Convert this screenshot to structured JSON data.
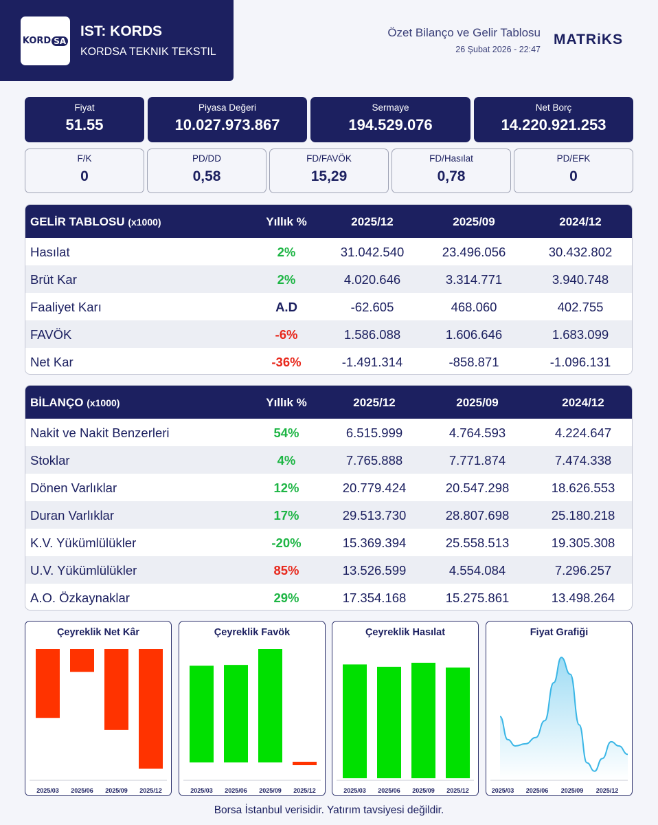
{
  "header": {
    "logo_text_a": "KORD",
    "logo_text_b": "SA",
    "ticker": "IST: KORDS",
    "company": "KORDSA TEKNIK TEKSTIL",
    "report_title": "Özet Bilanço ve Gelir Tablosu",
    "report_date": "26 Şubat 2026 - 22:47",
    "brand": "MATRiKS"
  },
  "metrics_primary": [
    {
      "label": "Fiyat",
      "value": "51.55"
    },
    {
      "label": "Piyasa Değeri",
      "value": "10.027.973.867"
    },
    {
      "label": "Sermaye",
      "value": "194.529.076"
    },
    {
      "label": "Net Borç",
      "value": "14.220.921.253"
    }
  ],
  "metrics_ratios": [
    {
      "label": "F/K",
      "value": "0"
    },
    {
      "label": "PD/DD",
      "value": "0,58"
    },
    {
      "label": "FD/FAVÖK",
      "value": "15,29"
    },
    {
      "label": "FD/Hasılat",
      "value": "0,78"
    },
    {
      "label": "PD/EFK",
      "value": "0"
    }
  ],
  "income": {
    "title": "GELİR TABLOSU",
    "unit": "(x1000)",
    "yoy_header": "Yıllık %",
    "periods": [
      "2025/12",
      "2025/09",
      "2024/12"
    ],
    "rows": [
      {
        "name": "Hasılat",
        "yoy": "2%",
        "trend": "pos",
        "v1": "31.042.540",
        "v2": "23.496.056",
        "v3": "30.432.802"
      },
      {
        "name": "Brüt Kar",
        "yoy": "2%",
        "trend": "pos",
        "v1": "4.020.646",
        "v2": "3.314.771",
        "v3": "3.940.748"
      },
      {
        "name": "Faaliyet Karı",
        "yoy": "A.D",
        "trend": "na",
        "v1": "-62.605",
        "v2": "468.060",
        "v3": "402.755"
      },
      {
        "name": "FAVÖK",
        "yoy": "-6%",
        "trend": "neg",
        "v1": "1.586.088",
        "v2": "1.606.646",
        "v3": "1.683.099"
      },
      {
        "name": "Net Kar",
        "yoy": "-36%",
        "trend": "neg",
        "v1": "-1.491.314",
        "v2": "-858.871",
        "v3": "-1.096.131"
      }
    ]
  },
  "balance": {
    "title": "BİLANÇO",
    "unit": "(x1000)",
    "yoy_header": "Yıllık %",
    "periods": [
      "2025/12",
      "2025/09",
      "2024/12"
    ],
    "rows": [
      {
        "name": "Nakit ve Nakit Benzerleri",
        "yoy": "54%",
        "trend": "pos",
        "v1": "6.515.999",
        "v2": "4.764.593",
        "v3": "4.224.647"
      },
      {
        "name": "Stoklar",
        "yoy": "4%",
        "trend": "pos",
        "v1": "7.765.888",
        "v2": "7.771.874",
        "v3": "7.474.338"
      },
      {
        "name": "Dönen Varlıklar",
        "yoy": "12%",
        "trend": "pos",
        "v1": "20.779.424",
        "v2": "20.547.298",
        "v3": "18.626.553"
      },
      {
        "name": "Duran Varlıklar",
        "yoy": "17%",
        "trend": "pos",
        "v1": "29.513.730",
        "v2": "28.807.698",
        "v3": "25.180.218"
      },
      {
        "name": "K.V. Yükümlülükler",
        "yoy": "-20%",
        "trend": "pos",
        "v1": "15.369.394",
        "v2": "25.558.513",
        "v3": "19.305.308"
      },
      {
        "name": "U.V. Yükümlülükler",
        "yoy": "85%",
        "trend": "neg",
        "v1": "13.526.599",
        "v2": "4.554.084",
        "v3": "7.296.257"
      },
      {
        "name": "A.O. Özkaynaklar",
        "yoy": "29%",
        "trend": "pos",
        "v1": "17.354.168",
        "v2": "15.275.861",
        "v3": "13.498.264"
      }
    ]
  },
  "colors": {
    "navy": "#1c2060",
    "green": "#00e000",
    "red": "#ff3300",
    "area": "#9fdcf4",
    "line": "#3ab6e6"
  },
  "chart_data": [
    {
      "type": "bar",
      "title": "Çeyreklik Net Kâr",
      "categories": [
        "2025/03",
        "2025/06",
        "2025/09",
        "2025/12"
      ],
      "values": [
        -858871,
        -285000,
        -1010000,
        -1491314
      ],
      "ylim": [
        -1491314,
        0
      ]
    },
    {
      "type": "bar",
      "title": "Çeyreklik Favök",
      "categories": [
        "2025/03",
        "2025/06",
        "2025/09",
        "2025/12"
      ],
      "values": [
        1289000,
        1300000,
        1512000,
        40000
      ],
      "ylim": [
        0,
        1512000
      ]
    },
    {
      "type": "bar",
      "title": "Çeyreklik Hasılat",
      "categories": [
        "2025/03",
        "2025/06",
        "2025/09",
        "2025/12"
      ],
      "values": [
        31042540,
        30400000,
        31500000,
        30200000
      ],
      "ylim": [
        0,
        31500000
      ]
    },
    {
      "type": "area",
      "title": "Fiyat Grafiği",
      "categories": [
        "2025/03",
        "2025/06",
        "2025/09",
        "2025/12"
      ],
      "x": [
        0,
        0.06,
        0.12,
        0.2,
        0.28,
        0.35,
        0.42,
        0.48,
        0.55,
        0.62,
        0.68,
        0.74,
        0.8,
        0.87,
        0.93,
        1.0
      ],
      "values": [
        68,
        57,
        54,
        55,
        58,
        66,
        84,
        96,
        88,
        64,
        46,
        42,
        48,
        56,
        54,
        50
      ],
      "ylim": [
        38,
        100
      ]
    }
  ],
  "footer": "Borsa İstanbul verisidir. Yatırım tavsiyesi değildir."
}
